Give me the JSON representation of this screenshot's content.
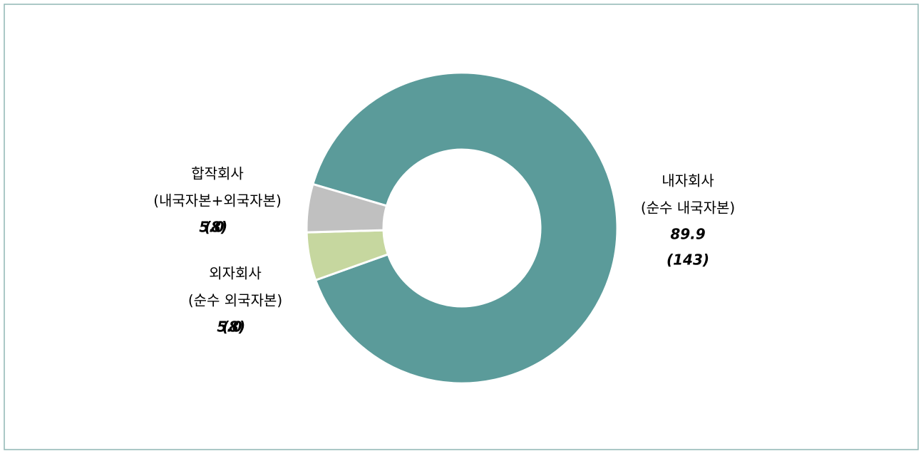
{
  "chart_data": {
    "type": "donut",
    "categories": [
      "내자회사",
      "외자회사",
      "합작회사"
    ],
    "descriptions": [
      "(순수 내국자본)",
      "(순수 외국자본)",
      "(내국자본+외국자본)"
    ],
    "values": [
      89.9,
      5.0,
      5.0
    ],
    "value_labels": [
      "89.9",
      "5.0",
      "5.0"
    ],
    "counts": [
      143,
      8,
      8
    ],
    "count_labels": [
      "(143)",
      "(8)",
      "(8)"
    ],
    "colors": [
      "#5b9b9a",
      "#c6d79f",
      "#c0c0c0"
    ]
  }
}
